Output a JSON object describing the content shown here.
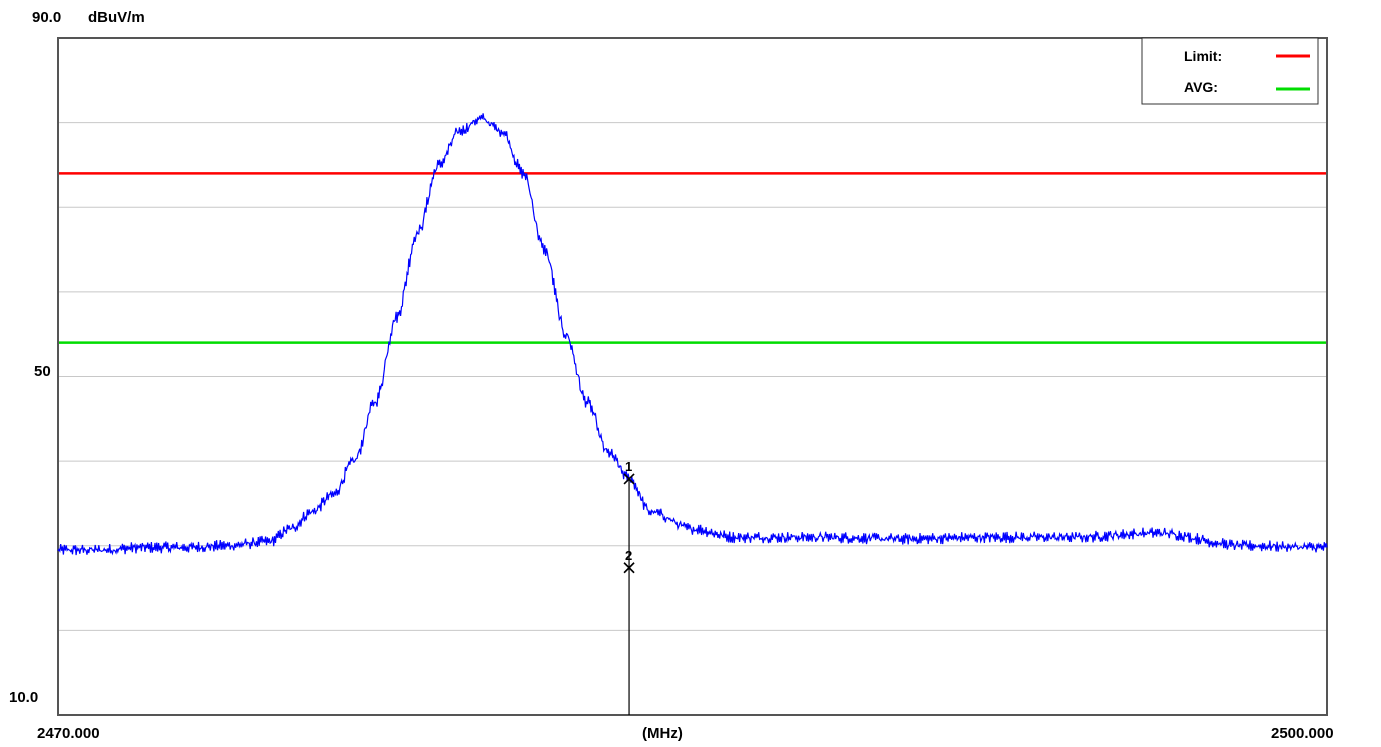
{
  "chart_data": {
    "type": "line",
    "unit_label": "dBuV/m",
    "xlabel": "(MHz)",
    "xlim": [
      2470.0,
      2500.0
    ],
    "ylim": [
      10.0,
      90.0
    ],
    "x_tick_labels": [
      "2470.000",
      "2500.000"
    ],
    "y_tick_labels": [
      "90.0",
      "50",
      "10.0"
    ],
    "y_gridlines": [
      20,
      30,
      40,
      60,
      70,
      80
    ],
    "grid": true,
    "legend": {
      "placement": "top-right",
      "entries": [
        {
          "label": "Limit:",
          "color": "#ff0000"
        },
        {
          "label": "AVG:",
          "color": "#00dd00"
        }
      ]
    },
    "limit_lines": [
      {
        "name": "Limit",
        "y": 74.0,
        "color": "#ff0000"
      },
      {
        "name": "AVG",
        "y": 54.0,
        "color": "#00dd00"
      }
    ],
    "series": [
      {
        "color": "#0000ff",
        "x": [
          2470.0,
          2471.0,
          2472.0,
          2473.0,
          2474.0,
          2475.0,
          2475.5,
          2476.0,
          2476.5,
          2477.0,
          2477.5,
          2478.0,
          2478.5,
          2479.0,
          2479.5,
          2480.0,
          2480.5,
          2481.0,
          2481.5,
          2482.0,
          2482.5,
          2483.0,
          2483.5,
          2484.0,
          2485.0,
          2486.0,
          2488.0,
          2490.0,
          2492.0,
          2494.0,
          2496.0,
          2498.0,
          2500.0
        ],
        "y": [
          29.5,
          29.5,
          29.8,
          29.8,
          30.0,
          30.5,
          32.0,
          34.0,
          36.0,
          40.0,
          47.0,
          57.0,
          67.0,
          75.0,
          79.0,
          80.5,
          79.0,
          74.0,
          65.0,
          55.0,
          47.0,
          41.0,
          38.0,
          34.0,
          32.0,
          31.0,
          31.0,
          30.8,
          31.0,
          31.0,
          31.5,
          30.0,
          29.8
        ]
      }
    ],
    "markers": [
      {
        "label": "1",
        "x": 2483.5,
        "y": 37.9
      },
      {
        "label": "2",
        "x": 2483.5,
        "y": 27.4
      }
    ]
  }
}
